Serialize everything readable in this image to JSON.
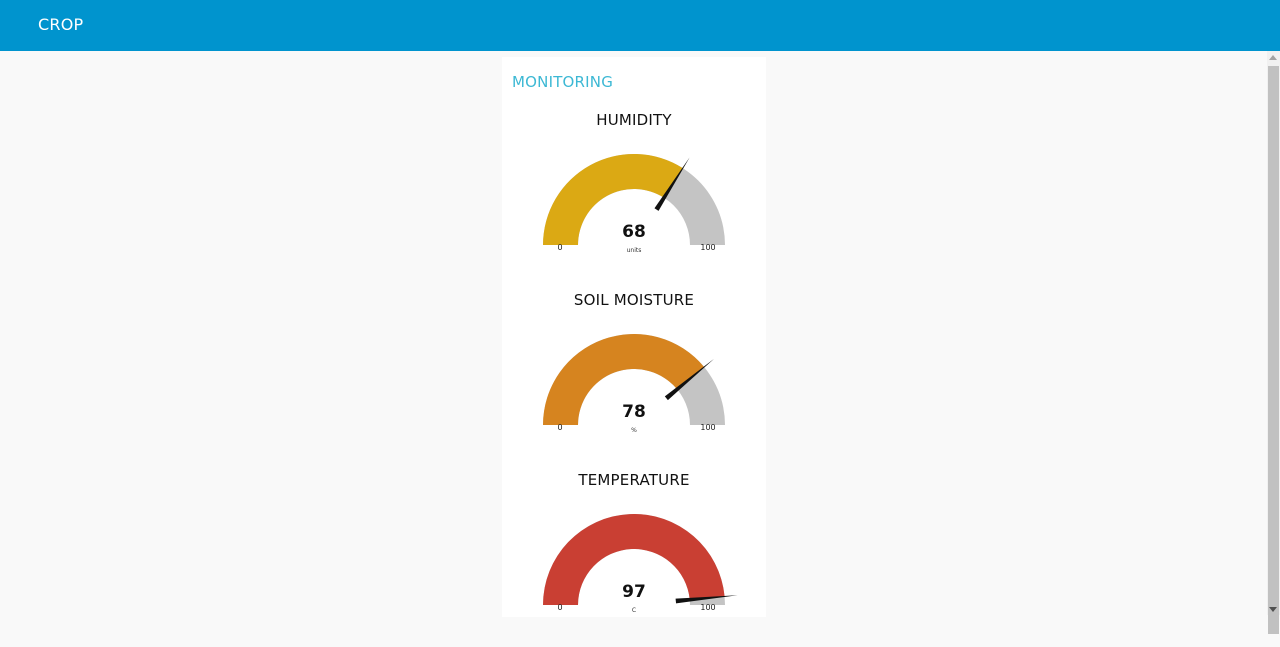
{
  "header": {
    "title": "CROP",
    "bar_color": "#0094ce"
  },
  "group": {
    "title": "MONITORING"
  },
  "gauges": [
    {
      "label": "HUMIDITY",
      "value": 68,
      "display_value": "68",
      "units": "units",
      "min": 0,
      "max": 100,
      "min_label": "0",
      "max_label": "100",
      "color": "#dba914"
    },
    {
      "label": "SOIL MOISTURE",
      "value": 78,
      "display_value": "78",
      "units": "%",
      "min": 0,
      "max": 100,
      "min_label": "0",
      "max_label": "100",
      "color": "#d6841f"
    },
    {
      "label": "TEMPERATURE",
      "value": 97,
      "display_value": "97",
      "units": "C",
      "min": 0,
      "max": 100,
      "min_label": "0",
      "max_label": "100",
      "color": "#c93f33"
    }
  ],
  "colors": {
    "gauge_track": "#c4c4c4",
    "accent_title": "#3cb8d4",
    "needle": "#111111"
  }
}
